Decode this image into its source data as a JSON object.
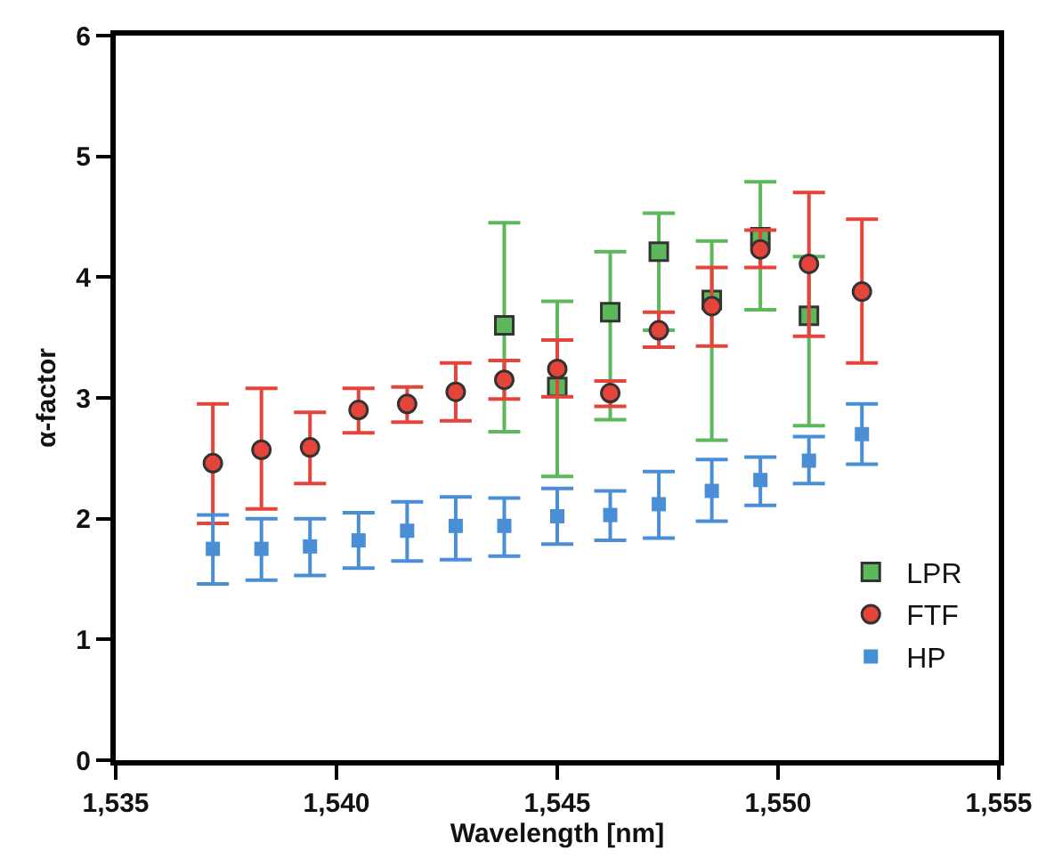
{
  "chart_data": {
    "type": "scatter",
    "xlabel": "Wavelength [nm]",
    "ylabel": "α-factor",
    "xlim": [
      1535,
      1555
    ],
    "xticks": [
      {
        "value": 1535,
        "label": "1,535"
      },
      {
        "value": 1540,
        "label": "1,540"
      },
      {
        "value": 1545,
        "label": "1,545"
      },
      {
        "value": 1550,
        "label": "1,550"
      },
      {
        "value": 1555,
        "label": "1,555"
      }
    ],
    "ylim": [
      0,
      6
    ],
    "yticks": [
      0,
      1,
      2,
      3,
      4,
      5,
      6
    ],
    "legend": "bottom right",
    "series": [
      {
        "name": "LPR",
        "color": "#5cb85a",
        "marker": "square",
        "x": [
          1543.8,
          1545.0,
          1546.2,
          1547.3,
          1548.5,
          1549.6,
          1550.7
        ],
        "values": [
          3.6,
          3.09,
          3.71,
          4.21,
          3.81,
          4.33,
          3.68
        ],
        "errors": [
          [
            2.72,
            4.45
          ],
          [
            2.35,
            3.8
          ],
          [
            2.82,
            4.21
          ],
          [
            3.56,
            4.53
          ],
          [
            2.65,
            4.3
          ],
          [
            3.73,
            4.79
          ],
          [
            2.77,
            4.17
          ]
        ]
      },
      {
        "name": "FTF",
        "color": "#e5443a",
        "marker": "circle",
        "x": [
          1537.2,
          1538.3,
          1539.4,
          1540.5,
          1541.6,
          1542.7,
          1543.8,
          1545.0,
          1546.2,
          1547.3,
          1548.5,
          1549.6,
          1550.7,
          1551.9
        ],
        "values": [
          2.46,
          2.57,
          2.59,
          2.9,
          2.95,
          3.05,
          3.15,
          3.24,
          3.04,
          3.56,
          3.76,
          4.23,
          4.11,
          3.88
        ],
        "errors": [
          [
            1.96,
            2.95
          ],
          [
            2.08,
            3.08
          ],
          [
            2.29,
            2.88
          ],
          [
            2.71,
            3.08
          ],
          [
            2.8,
            3.09
          ],
          [
            2.81,
            3.29
          ],
          [
            2.99,
            3.31
          ],
          [
            3.01,
            3.48
          ],
          [
            2.93,
            3.14
          ],
          [
            3.42,
            3.71
          ],
          [
            3.43,
            4.08
          ],
          [
            4.08,
            4.39
          ],
          [
            3.51,
            4.7
          ],
          [
            3.29,
            4.48
          ]
        ]
      },
      {
        "name": "HP",
        "color": "#4a8fd6",
        "marker": "square",
        "x": [
          1537.2,
          1538.3,
          1539.4,
          1540.5,
          1541.6,
          1542.7,
          1543.8,
          1545.0,
          1546.2,
          1547.3,
          1548.5,
          1549.6,
          1550.7,
          1551.9
        ],
        "values": [
          1.75,
          1.75,
          1.77,
          1.82,
          1.9,
          1.94,
          1.94,
          2.02,
          2.03,
          2.12,
          2.23,
          2.32,
          2.48,
          2.7
        ],
        "errors": [
          [
            1.46,
            2.03
          ],
          [
            1.49,
            2.0
          ],
          [
            1.53,
            2.0
          ],
          [
            1.59,
            2.05
          ],
          [
            1.65,
            2.14
          ],
          [
            1.66,
            2.18
          ],
          [
            1.69,
            2.17
          ],
          [
            1.79,
            2.25
          ],
          [
            1.82,
            2.23
          ],
          [
            1.84,
            2.39
          ],
          [
            1.98,
            2.49
          ],
          [
            2.11,
            2.51
          ],
          [
            2.29,
            2.68
          ],
          [
            2.45,
            2.95
          ]
        ]
      }
    ]
  }
}
